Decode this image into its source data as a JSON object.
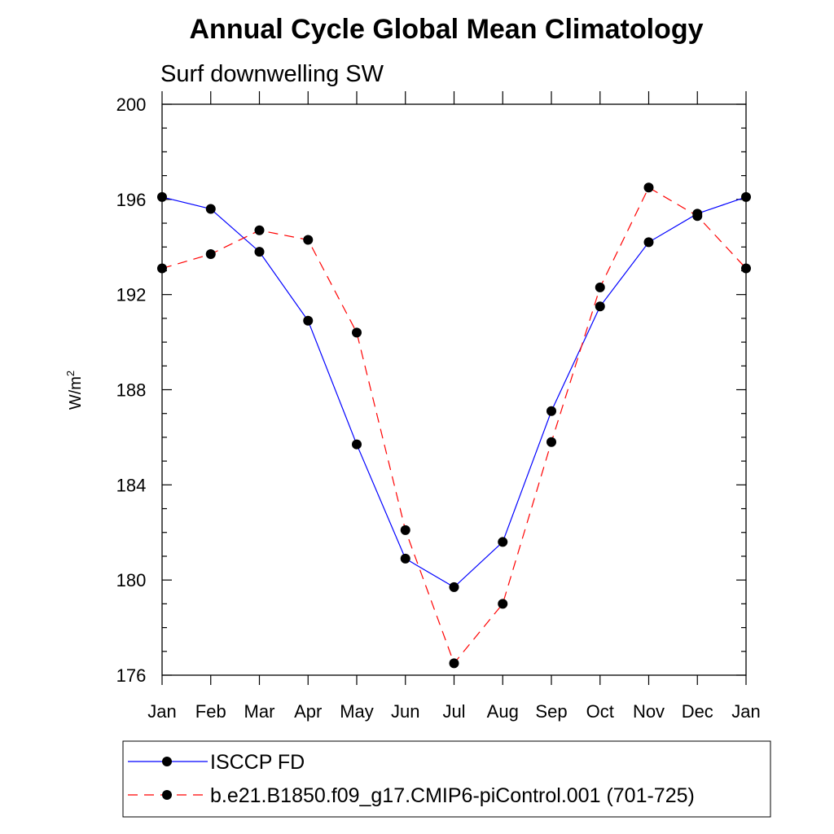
{
  "chart_data": {
    "type": "line",
    "title": "Annual Cycle Global Mean Climatology",
    "subtitle": "Surf downwelling SW",
    "ylabel": "W/m",
    "ylabel_sup": "2",
    "xlabel": "",
    "categories": [
      "Jan",
      "Feb",
      "Mar",
      "Apr",
      "May",
      "Jun",
      "Jul",
      "Aug",
      "Sep",
      "Oct",
      "Nov",
      "Dec",
      "Jan"
    ],
    "ylim": [
      176,
      200
    ],
    "yticks": [
      176,
      180,
      184,
      188,
      192,
      196,
      200
    ],
    "y_minor_step": 1,
    "grid": false,
    "legend_position": "bottom",
    "series": [
      {
        "name": "ISCCP FD",
        "color": "#0000ff",
        "dash": "solid",
        "marker": "filled-circle",
        "values": [
          196.1,
          195.6,
          193.8,
          190.9,
          185.7,
          180.9,
          179.7,
          181.6,
          187.1,
          191.5,
          194.2,
          195.4,
          196.1
        ]
      },
      {
        "name": "b.e21.B1850.f09_g17.CMIP6-piControl.001 (701-725)",
        "color": "#ff0000",
        "dash": "dashed",
        "marker": "filled-circle",
        "values": [
          193.1,
          193.7,
          194.7,
          194.3,
          190.4,
          182.1,
          176.5,
          179.0,
          185.8,
          192.3,
          196.5,
          195.3,
          193.1
        ]
      }
    ]
  }
}
